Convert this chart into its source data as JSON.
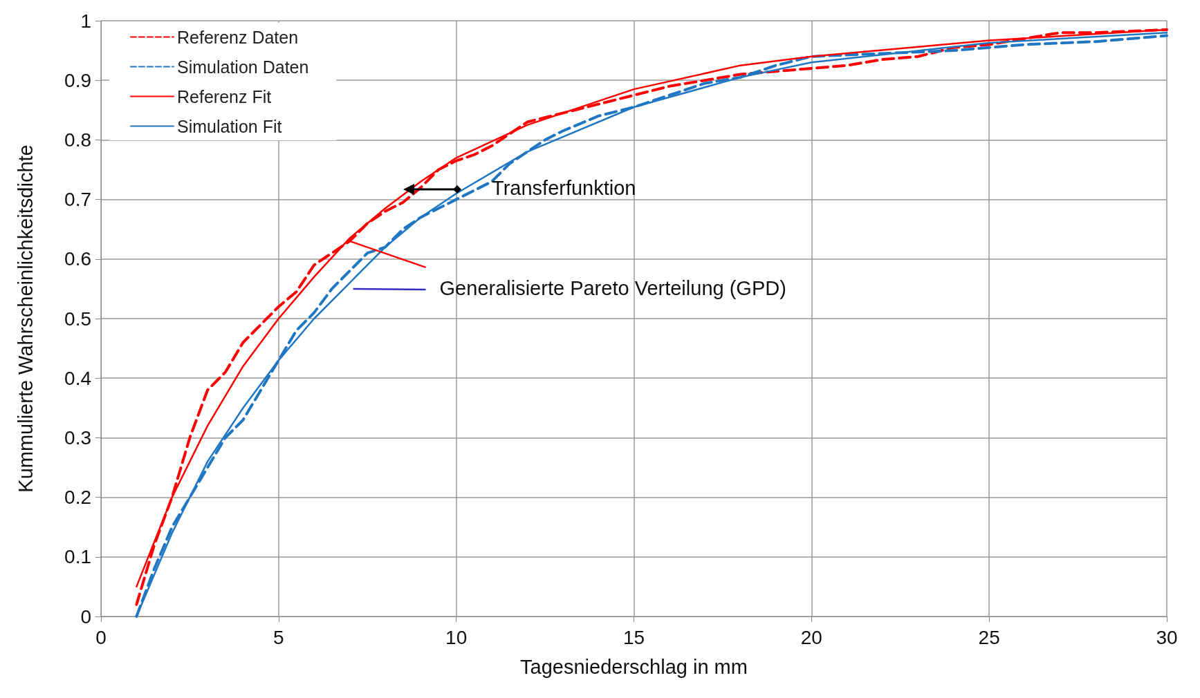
{
  "chart_data": {
    "type": "line",
    "xlabel": "Tagesniederschlag in mm",
    "ylabel": "Kummulierte Wahrscheinlichkeitsdichte",
    "xlim": [
      0,
      30
    ],
    "xticks": [
      0,
      5,
      10,
      15,
      20,
      25,
      30
    ],
    "ylim": [
      0,
      1
    ],
    "yticks": [
      0,
      0.1,
      0.2,
      0.3,
      0.4,
      0.5,
      0.6,
      0.7,
      0.8,
      0.9,
      1
    ],
    "grid": true,
    "legend": "top left",
    "marker": "none",
    "annotations": [
      "Transferfunktion",
      {
        "text": "Generalisierte Pareto Verteilung (GPD)",
        "x": 7,
        "y": 0.63
      }
    ],
    "series": [
      {
        "name": "Referenz Daten",
        "color": "#ff0000",
        "line_style": "dashed",
        "x": [
          1,
          1.5,
          2,
          2.5,
          3,
          3.5,
          4,
          4.5,
          5,
          5.5,
          6,
          6.5,
          7,
          7.5,
          8,
          8.5,
          9,
          9.5,
          10,
          10.5,
          11,
          11.5,
          12,
          13,
          14,
          15,
          16,
          17,
          18,
          19,
          20,
          21,
          22,
          23,
          24,
          25,
          26,
          27,
          28,
          30
        ],
        "values": [
          0.02,
          0.12,
          0.2,
          0.3,
          0.38,
          0.41,
          0.46,
          0.49,
          0.52,
          0.545,
          0.59,
          0.61,
          0.63,
          0.66,
          0.68,
          0.695,
          0.72,
          0.75,
          0.765,
          0.775,
          0.79,
          0.81,
          0.83,
          0.845,
          0.86,
          0.875,
          0.89,
          0.9,
          0.91,
          0.915,
          0.92,
          0.925,
          0.935,
          0.94,
          0.955,
          0.96,
          0.97,
          0.98,
          0.98,
          0.985
        ]
      },
      {
        "name": "Simulation Daten",
        "color": "#1f77c4",
        "line_style": "dashed",
        "x": [
          1,
          1.5,
          2,
          2.5,
          3,
          3.5,
          4,
          4.5,
          5,
          5.5,
          6,
          6.5,
          7,
          7.5,
          8,
          8.5,
          9,
          9.5,
          10,
          10.5,
          11,
          11.5,
          12,
          12.5,
          13,
          14,
          15,
          16,
          17,
          18,
          19,
          20,
          22,
          24,
          26,
          28,
          30
        ],
        "values": [
          0,
          0.08,
          0.15,
          0.2,
          0.25,
          0.3,
          0.33,
          0.38,
          0.43,
          0.48,
          0.51,
          0.55,
          0.58,
          0.61,
          0.62,
          0.65,
          0.67,
          0.685,
          0.7,
          0.715,
          0.73,
          0.76,
          0.78,
          0.8,
          0.815,
          0.84,
          0.855,
          0.875,
          0.895,
          0.905,
          0.925,
          0.94,
          0.945,
          0.95,
          0.96,
          0.965,
          0.975
        ]
      },
      {
        "name": "Referenz Fit",
        "color": "#ff0000",
        "line_style": "solid",
        "x": [
          1,
          2,
          3,
          4,
          5,
          6,
          7,
          8,
          9,
          10,
          12,
          15,
          18,
          20,
          25,
          30
        ],
        "values": [
          0.05,
          0.2,
          0.32,
          0.42,
          0.5,
          0.57,
          0.635,
          0.685,
          0.73,
          0.77,
          0.825,
          0.885,
          0.925,
          0.94,
          0.967,
          0.985
        ]
      },
      {
        "name": "Simulation Fit",
        "color": "#1f77c4",
        "line_style": "solid",
        "x": [
          1,
          2,
          3,
          4,
          5,
          6,
          7,
          8,
          9,
          10,
          12,
          15,
          18,
          20,
          25,
          30
        ],
        "values": [
          0,
          0.14,
          0.26,
          0.35,
          0.43,
          0.5,
          0.56,
          0.62,
          0.67,
          0.71,
          0.78,
          0.855,
          0.905,
          0.93,
          0.963,
          0.98
        ]
      }
    ]
  }
}
